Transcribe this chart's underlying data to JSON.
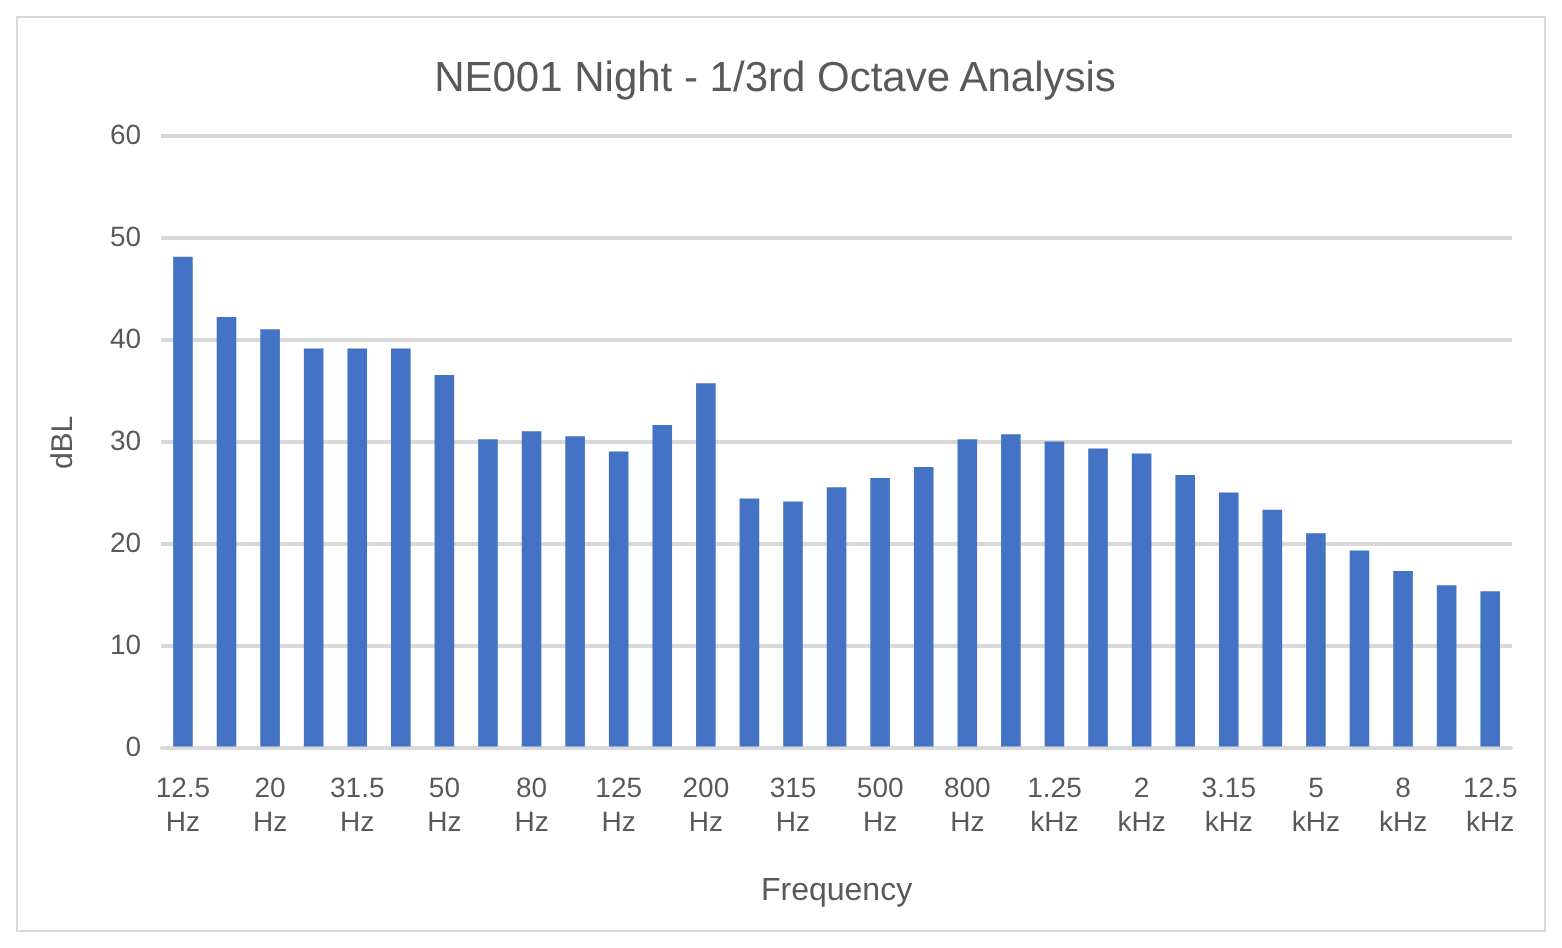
{
  "chart_data": {
    "type": "bar",
    "title": "NE001 Night - 1/3rd Octave Analysis",
    "xlabel": "Frequency",
    "ylabel": "dBL",
    "categories": [
      "12.5 Hz",
      null,
      "20 Hz",
      null,
      "31.5 Hz",
      null,
      "50 Hz",
      null,
      "80 Hz",
      null,
      "125 Hz",
      null,
      "200 Hz",
      null,
      "315 Hz",
      null,
      "500 Hz",
      null,
      "800 Hz",
      null,
      "1.25 kHz",
      null,
      "2 kHz",
      null,
      "3.15 kHz",
      null,
      "5 kHz",
      null,
      "8 kHz",
      null,
      "12.5 kHz"
    ],
    "values": [
      48.2,
      42.3,
      41.1,
      39.2,
      39.2,
      39.2,
      36.6,
      30.3,
      31.1,
      30.6,
      29.1,
      31.7,
      35.8,
      24.5,
      24.2,
      25.6,
      26.5,
      27.6,
      30.3,
      30.8,
      30.1,
      29.4,
      28.9,
      26.8,
      25.1,
      23.4,
      21.1,
      19.4,
      17.4,
      16.0,
      15.4
    ],
    "color": "#4472c4",
    "ylim": [
      0,
      60
    ],
    "yticks": [
      0,
      10,
      20,
      30,
      40,
      50,
      60
    ],
    "grid": "y",
    "legend": false
  }
}
